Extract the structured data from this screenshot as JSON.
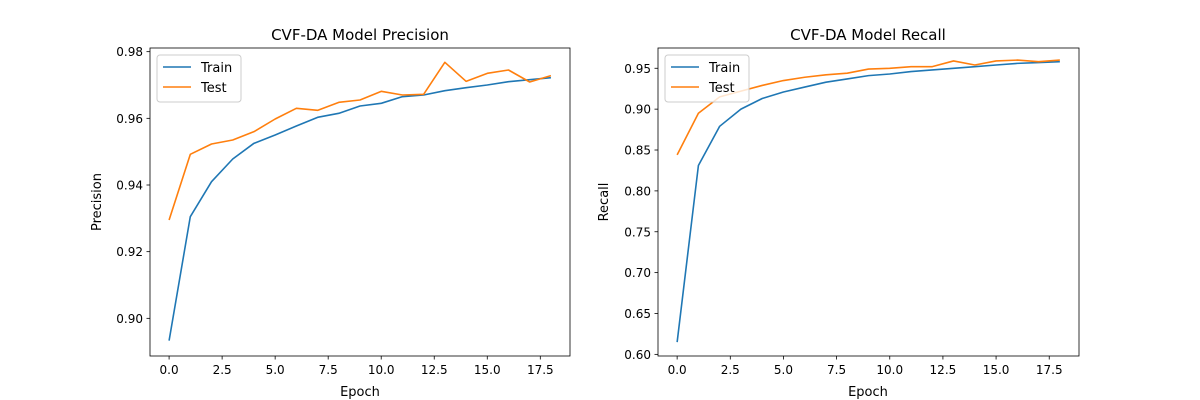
{
  "colors": {
    "train": "#1f77b4",
    "test": "#ff7f0e"
  },
  "chart_data": [
    {
      "type": "line",
      "title": "CVF-DA Model Precision",
      "xlabel": "Epoch",
      "ylabel": "Precision",
      "xlim": [
        -0.9,
        18.9
      ],
      "ylim": [
        0.8887,
        0.9811
      ],
      "xticks": [
        0.0,
        2.5,
        5.0,
        7.5,
        10.0,
        12.5,
        15.0,
        17.5
      ],
      "xtick_labels": [
        "0.0",
        "2.5",
        "5.0",
        "7.5",
        "10.0",
        "12.5",
        "15.0",
        "17.5"
      ],
      "yticks": [
        0.9,
        0.92,
        0.94,
        0.96,
        0.98
      ],
      "ytick_labels": [
        "0.90",
        "0.92",
        "0.94",
        "0.96",
        "0.98"
      ],
      "legend": "top-left",
      "x": [
        0,
        1,
        2,
        3,
        4,
        5,
        6,
        7,
        8,
        9,
        10,
        11,
        12,
        13,
        14,
        15,
        16,
        17,
        18
      ],
      "series": [
        {
          "name": "Train",
          "color": "#1f77b4",
          "values": [
            0.8933,
            0.9305,
            0.941,
            0.9478,
            0.9525,
            0.955,
            0.9577,
            0.9603,
            0.9615,
            0.9637,
            0.9645,
            0.9665,
            0.967,
            0.9683,
            0.9692,
            0.97,
            0.971,
            0.9716,
            0.9722
          ]
        },
        {
          "name": "Test",
          "color": "#ff7f0e",
          "values": [
            0.9295,
            0.9492,
            0.9523,
            0.9535,
            0.956,
            0.9598,
            0.963,
            0.9624,
            0.9648,
            0.9655,
            0.9681,
            0.967,
            0.9672,
            0.9768,
            0.9711,
            0.9735,
            0.9745,
            0.9709,
            0.9728
          ]
        }
      ]
    },
    {
      "type": "line",
      "title": "CVF-DA Model Recall",
      "xlabel": "Epoch",
      "ylabel": "Recall",
      "xlim": [
        -0.9,
        18.9
      ],
      "ylim": [
        0.598,
        0.9748
      ],
      "xticks": [
        0.0,
        2.5,
        5.0,
        7.5,
        10.0,
        12.5,
        15.0,
        17.5
      ],
      "xtick_labels": [
        "0.0",
        "2.5",
        "5.0",
        "7.5",
        "10.0",
        "12.5",
        "15.0",
        "17.5"
      ],
      "yticks": [
        0.6,
        0.65,
        0.7,
        0.75,
        0.8,
        0.85,
        0.9,
        0.95
      ],
      "ytick_labels": [
        "0.60",
        "0.65",
        "0.70",
        "0.75",
        "0.80",
        "0.85",
        "0.90",
        "0.95"
      ],
      "legend": "top-left",
      "x": [
        0,
        1,
        2,
        3,
        4,
        5,
        6,
        7,
        8,
        9,
        10,
        11,
        12,
        13,
        14,
        15,
        16,
        17,
        18
      ],
      "series": [
        {
          "name": "Train",
          "color": "#1f77b4",
          "values": [
            0.615,
            0.831,
            0.879,
            0.9,
            0.913,
            0.921,
            0.927,
            0.933,
            0.937,
            0.941,
            0.943,
            0.946,
            0.948,
            0.95,
            0.952,
            0.954,
            0.956,
            0.957,
            0.958
          ]
        },
        {
          "name": "Test",
          "color": "#ff7f0e",
          "values": [
            0.844,
            0.895,
            0.915,
            0.922,
            0.929,
            0.935,
            0.939,
            0.942,
            0.944,
            0.949,
            0.95,
            0.952,
            0.952,
            0.959,
            0.954,
            0.959,
            0.96,
            0.958,
            0.96
          ]
        }
      ]
    }
  ]
}
